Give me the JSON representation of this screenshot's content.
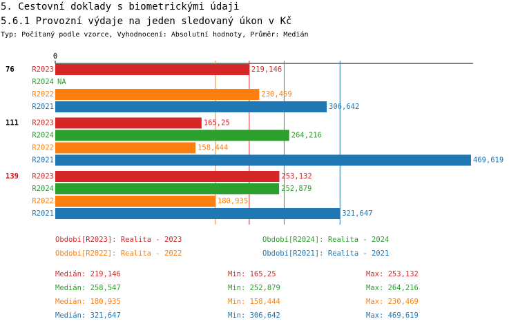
{
  "header": {
    "title": "5. Cestovní doklady s biometrickými údaji",
    "subtitle": "5.6.1 Provozní výdaje na jeden sledovaný úkon v Kč",
    "description": "Typ: Počítaný podle vzorce, Vyhodnocení: Absolutní hodnoty, Průměr: Medián"
  },
  "chart_data": {
    "type": "hbar",
    "categories": [
      "76",
      "111",
      "139"
    ],
    "category_colors": [
      "#000000",
      "#000000",
      "#e8000b"
    ],
    "xlim": [
      0,
      472
    ],
    "xticks": [
      0
    ],
    "series": [
      {
        "name": "R2023",
        "color": "#d62728",
        "legend": "Období[R2023]: Realita - 2023",
        "values": [
          219.146,
          165.25,
          253.132
        ],
        "value_labels": [
          "219,146",
          "165,25",
          "253,132"
        ],
        "median": {
          "value": 219.146,
          "label": "Medián: 219,146"
        },
        "min": {
          "value": 165.25,
          "label": "Min: 165,25"
        },
        "max": {
          "value": 253.132,
          "label": "Max: 253,132"
        }
      },
      {
        "name": "R2024",
        "color": "#2ca02c",
        "legend": "Období[R2024]: Realita - 2024",
        "values": [
          null,
          264.216,
          252.879
        ],
        "value_labels": [
          "NA",
          "264,216",
          "252,879"
        ],
        "median": {
          "value": 258.547,
          "label": "Medián: 258,547"
        },
        "min": {
          "value": 252.879,
          "label": "Min: 252,879"
        },
        "max": {
          "value": 264.216,
          "label": "Max: 264,216"
        }
      },
      {
        "name": "R2022",
        "color": "#ff7f0e",
        "legend": "Období[R2022]: Realita - 2022",
        "values": [
          230.469,
          158.444,
          180.935
        ],
        "value_labels": [
          "230,469",
          "158,444",
          "180,935"
        ],
        "median": {
          "value": 180.935,
          "label": "Medián: 180,935"
        },
        "min": {
          "value": 158.444,
          "label": "Min: 158,444"
        },
        "max": {
          "value": 230.469,
          "label": "Max: 230,469"
        }
      },
      {
        "name": "R2021",
        "color": "#1f77b4",
        "legend": "Období[R2021]: Realita - 2021",
        "values": [
          306.642,
          469.619,
          321.647
        ],
        "value_labels": [
          "306,642",
          "469,619",
          "321,647"
        ],
        "median": {
          "value": 321.647,
          "label": "Medián: 321,647"
        },
        "min": {
          "value": 306.642,
          "label": "Min: 306,642"
        },
        "max": {
          "value": 469.619,
          "label": "Max: 469,619"
        }
      }
    ]
  }
}
